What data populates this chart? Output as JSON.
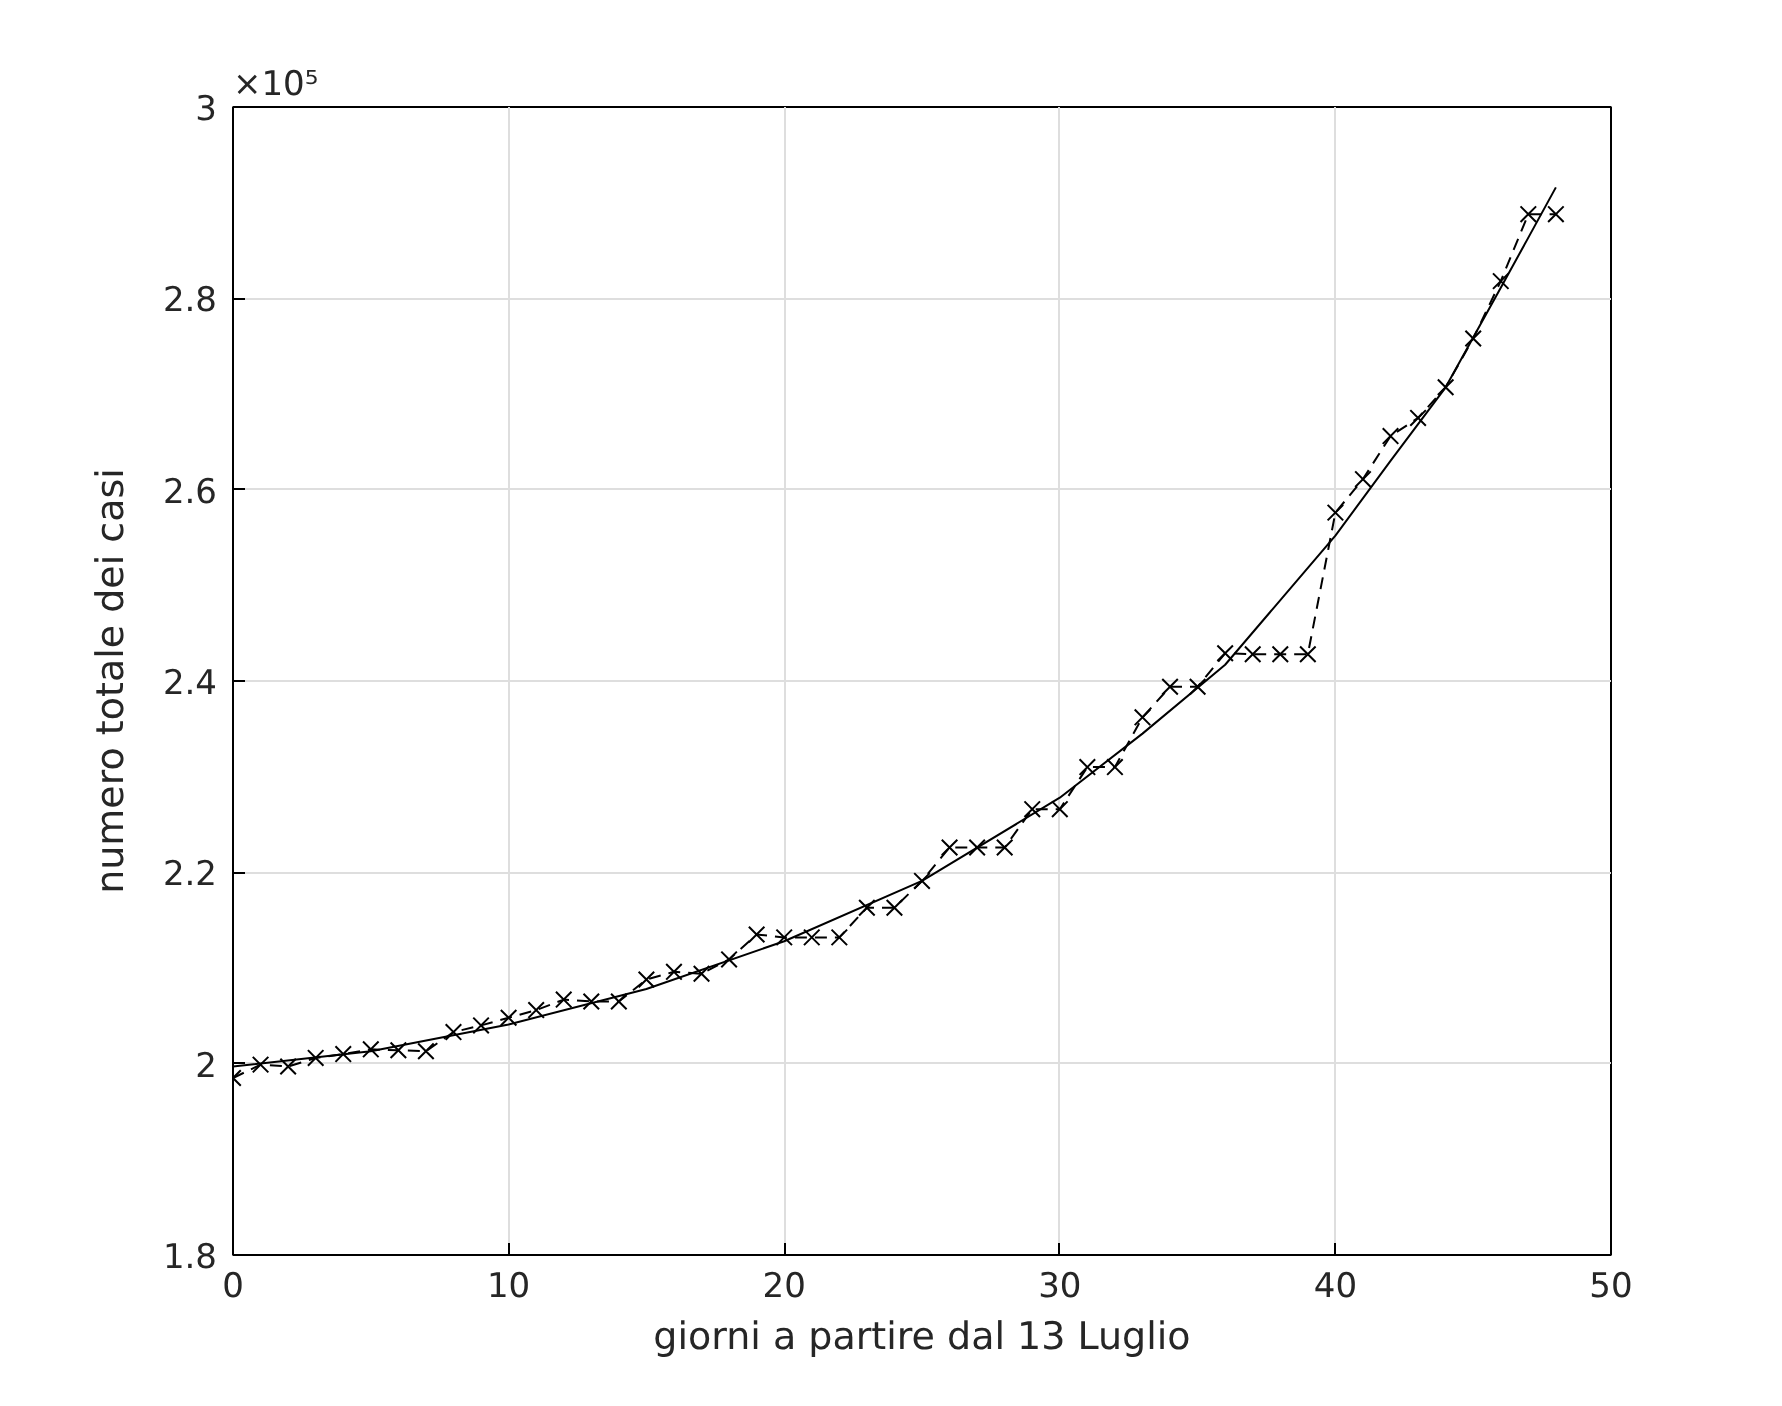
{
  "chart_data": {
    "type": "line",
    "xlabel": "giorni a partire dal 13 Luglio",
    "ylabel": "numero totale dei casi",
    "annotations": [
      "×10⁵"
    ],
    "xlim": [
      0,
      50
    ],
    "ylim": [
      1.8,
      3
    ],
    "xticks": [
      0,
      10,
      20,
      30,
      40,
      50
    ],
    "yticks": [
      1.8,
      2,
      2.2,
      2.4,
      2.6,
      2.8,
      3
    ],
    "grid": true,
    "series": [
      {
        "color": "#000000",
        "marker": "cross",
        "line_style": "dashed",
        "x": [
          0,
          1,
          2,
          3,
          4,
          5,
          6,
          7,
          8,
          9,
          10,
          11,
          12,
          13,
          14,
          15,
          16,
          17,
          18,
          19,
          20,
          21,
          22,
          23,
          24,
          25,
          26,
          27,
          28,
          29,
          30,
          31,
          32,
          33,
          34,
          35,
          36,
          37,
          38,
          39,
          40,
          41,
          42,
          43,
          44,
          45,
          46,
          47,
          48
        ],
        "values": [
          1.985,
          1.999,
          1.997,
          2.006,
          2.01,
          2.015,
          2.014,
          2.013,
          2.033,
          2.04,
          2.048,
          2.056,
          2.067,
          2.065,
          2.065,
          2.088,
          2.096,
          2.094,
          2.109,
          2.135,
          2.132,
          2.132,
          2.132,
          2.163,
          2.163,
          2.191,
          2.226,
          2.226,
          2.226,
          2.266,
          2.266,
          2.31,
          2.31,
          2.362,
          2.394,
          2.394,
          2.429,
          2.428,
          2.428,
          2.428,
          2.576,
          2.611,
          2.656,
          2.675,
          2.707,
          2.758,
          2.818,
          2.888,
          2.888
        ]
      },
      {
        "color": "#000000",
        "marker": "none",
        "line_style": "solid",
        "x": [
          0,
          5,
          10,
          15,
          20,
          25,
          30,
          33,
          36,
          40,
          42,
          44,
          46,
          48
        ],
        "values": [
          1.997,
          2.013,
          2.041,
          2.078,
          2.128,
          2.191,
          2.278,
          2.345,
          2.417,
          2.552,
          2.63,
          2.707,
          2.811,
          2.916
        ]
      }
    ]
  }
}
